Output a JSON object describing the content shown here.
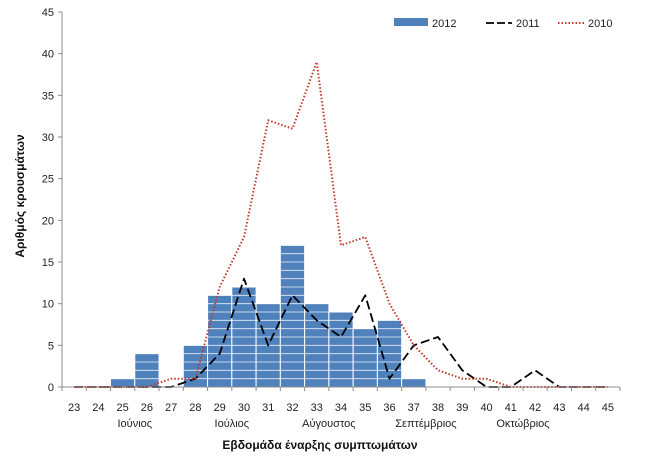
{
  "chart_data": {
    "type": "bar",
    "title": "",
    "xlabel": "Εβδομάδα έναρξης συμπτωμάτων",
    "ylabel": "Αριθμός κρουσμάτων",
    "ylim": [
      0,
      45
    ],
    "yticks": [
      "0",
      "5",
      "10",
      "15",
      "20",
      "25",
      "30",
      "35",
      "40",
      "45"
    ],
    "x": [
      "23",
      "24",
      "25",
      "26",
      "27",
      "28",
      "29",
      "30",
      "31",
      "32",
      "33",
      "34",
      "35",
      "36",
      "37",
      "38",
      "39",
      "40",
      "41",
      "42",
      "43",
      "44",
      "45"
    ],
    "months": [
      "Ιούνιος",
      "Ιούλιος",
      "Αύγουστος",
      "Σεπτέμβριος",
      "Οκτώβριος"
    ],
    "month_anchor_weeks": [
      25.5,
      29.5,
      33.5,
      37.5,
      41.5
    ],
    "grid": false,
    "legend_position": "top-right",
    "series": [
      {
        "name": "2012",
        "kind": "bar",
        "color": "#4f81bd",
        "values": [
          0,
          0,
          1,
          4,
          0,
          5,
          11,
          12,
          10,
          17,
          10,
          9,
          7,
          8,
          1,
          0,
          0,
          0,
          0,
          0,
          0,
          0,
          0
        ]
      },
      {
        "name": "2011",
        "kind": "line",
        "style": "dashed",
        "color": "#000000",
        "values": [
          0,
          0,
          0,
          0,
          0,
          1,
          4,
          13,
          5,
          11,
          8,
          6,
          11,
          1,
          5,
          6,
          2,
          0,
          0,
          2,
          0,
          0,
          0
        ]
      },
      {
        "name": "2010",
        "kind": "line",
        "style": "dotted",
        "color": "#c0392b",
        "values": [
          0,
          0,
          0,
          0,
          1,
          1,
          12,
          18,
          32,
          31,
          39,
          17,
          18,
          10,
          5,
          2,
          1,
          1,
          0,
          0,
          0,
          0,
          0
        ]
      }
    ]
  }
}
